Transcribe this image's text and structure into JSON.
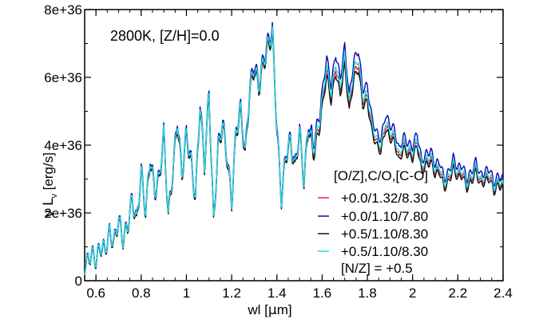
{
  "chart_data": {
    "type": "line",
    "annotation": "2800K, [Z/H]=0.0",
    "xlabel_prefix": "wl [",
    "xlabel_mu": "μ",
    "xlabel_suffix": "m]",
    "ylabel_nu": "ν L",
    "ylabel_sub": "ν",
    "ylabel_unit": " [erg/s]",
    "xlim": [
      0.55,
      2.4
    ],
    "ylim": [
      0,
      8e+36
    ],
    "xticks": [
      {
        "value": 0.6,
        "label": "0.6"
      },
      {
        "value": 0.8,
        "label": "0.8"
      },
      {
        "value": 1.0,
        "label": "1"
      },
      {
        "value": 1.2,
        "label": "1.2"
      },
      {
        "value": 1.4,
        "label": "1.4"
      },
      {
        "value": 1.6,
        "label": "1.6"
      },
      {
        "value": 1.8,
        "label": "1.8"
      },
      {
        "value": 2.0,
        "label": "2"
      },
      {
        "value": 2.2,
        "label": "2.2"
      },
      {
        "value": 2.4,
        "label": "2.4"
      }
    ],
    "yticks": [
      {
        "value": 0,
        "label": "0"
      },
      {
        "value": 2e+36,
        "label": "2e+36"
      },
      {
        "value": 4e+36,
        "label": "4e+36"
      },
      {
        "value": 6e+36,
        "label": "6e+36"
      },
      {
        "value": 8e+36,
        "label": "8e+36"
      }
    ],
    "legend_title": "[O/Z],C/O,[C-O]",
    "legend_position": "lower-right",
    "series": [
      {
        "name": "+0.0/1.32/8.30",
        "color": "#e8202a",
        "scale": 1.0,
        "offset": 0.0
      },
      {
        "name": "+0.0/1.10/7.80",
        "color": "#0a0ab4",
        "scale": 1.06,
        "offset": 0.03
      },
      {
        "name": "+0.5/1.10/8.30",
        "color": "#111111",
        "scale": 0.98,
        "offset": -0.02
      },
      {
        "name": "+0.5/1.10/8.30",
        "name2": "[N/Z] = +0.5",
        "color": "#22dde6",
        "scale": 1.02,
        "offset": 0.01
      }
    ],
    "spectrum_x": [
      0.55,
      0.58,
      0.6,
      0.62,
      0.64,
      0.66,
      0.68,
      0.7,
      0.72,
      0.74,
      0.76,
      0.78,
      0.8,
      0.82,
      0.84,
      0.86,
      0.88,
      0.9,
      0.92,
      0.94,
      0.96,
      0.98,
      1.0,
      1.02,
      1.04,
      1.06,
      1.08,
      1.1,
      1.12,
      1.14,
      1.16,
      1.18,
      1.2,
      1.22,
      1.24,
      1.26,
      1.28,
      1.3,
      1.32,
      1.34,
      1.36,
      1.38,
      1.4,
      1.42,
      1.44,
      1.46,
      1.48,
      1.5,
      1.52,
      1.54,
      1.56,
      1.58,
      1.6,
      1.62,
      1.64,
      1.66,
      1.68,
      1.7,
      1.72,
      1.74,
      1.76,
      1.78,
      1.8,
      1.82,
      1.84,
      1.86,
      1.88,
      1.9,
      1.92,
      1.94,
      1.96,
      1.98,
      2.0,
      2.02,
      2.04,
      2.06,
      2.08,
      2.1,
      2.12,
      2.14,
      2.16,
      2.18,
      2.2,
      2.22,
      2.24,
      2.26,
      2.28,
      2.3,
      2.32,
      2.34,
      2.36,
      2.38,
      2.4
    ],
    "spectrum_y": [
      0.4,
      0.8,
      0.6,
      1.0,
      0.9,
      1.4,
      1.1,
      1.8,
      1.2,
      1.6,
      2.4,
      1.7,
      3.2,
      2.0,
      3.6,
      2.6,
      3.0,
      4.3,
      1.9,
      3.2,
      4.7,
      3.1,
      4.3,
      3.5,
      2.4,
      5.2,
      3.4,
      5.5,
      1.7,
      3.9,
      4.6,
      3.6,
      2.3,
      4.4,
      5.0,
      3.7,
      5.6,
      6.3,
      5.7,
      6.4,
      6.9,
      7.3,
      4.5,
      2.4,
      3.7,
      4.1,
      3.3,
      4.4,
      2.9,
      4.6,
      3.8,
      4.3,
      5.2,
      6.2,
      5.4,
      6.3,
      5.6,
      6.5,
      5.1,
      6.1,
      6.4,
      5.3,
      5.4,
      4.5,
      4.1,
      3.9,
      4.6,
      4.3,
      4.2,
      3.6,
      4.0,
      3.8,
      3.7,
      4.1,
      3.3,
      3.5,
      3.6,
      3.2,
      3.3,
      2.8,
      3.0,
      3.4,
      3.1,
      3.2,
      2.8,
      3.0,
      3.3,
      2.9,
      3.0,
      3.1,
      2.7,
      2.9,
      2.8
    ]
  }
}
